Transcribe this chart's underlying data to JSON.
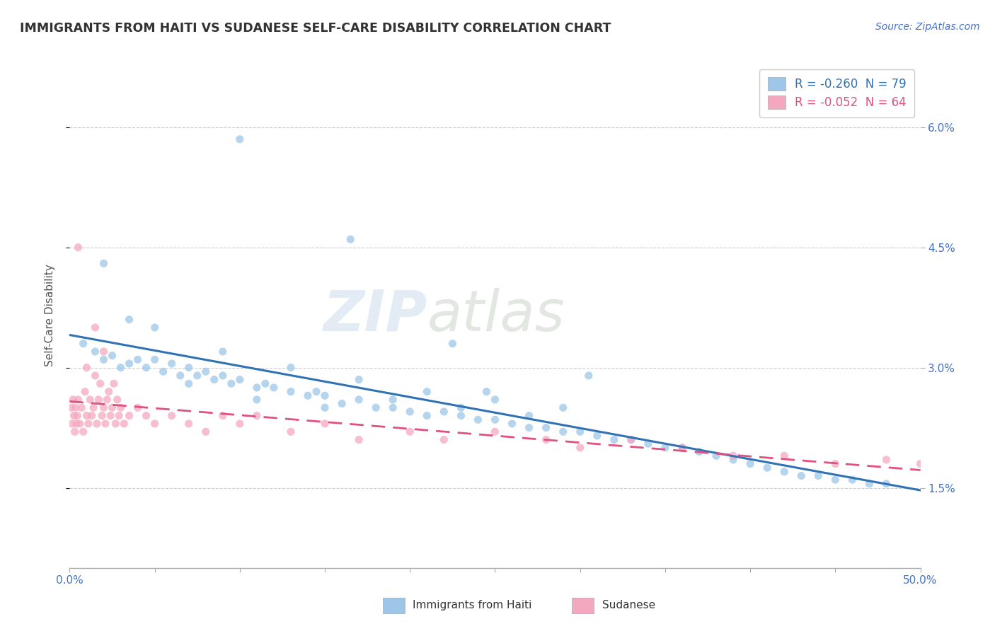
{
  "title": "IMMIGRANTS FROM HAITI VS SUDANESE SELF-CARE DISABILITY CORRELATION CHART",
  "source": "Source: ZipAtlas.com",
  "ylabel": "Self-Care Disability",
  "xlim": [
    0.0,
    50.0
  ],
  "ylim_bottom": 0.5,
  "ylim_top": 6.8,
  "ytick_positions": [
    1.5,
    3.0,
    4.5,
    6.0
  ],
  "ytick_labels": [
    "1.5%",
    "3.0%",
    "4.5%",
    "6.0%"
  ],
  "legend_line1": "R = -0.260  N = 79",
  "legend_line2": "R = -0.052  N = 64",
  "blue_color": "#9dc6e8",
  "pink_color": "#f4a8c0",
  "blue_line_color": "#3072b3",
  "pink_line_color": "#e05080",
  "watermark": "ZIPatlas",
  "blue_scatter_x": [
    10.0,
    0.8,
    1.5,
    2.0,
    2.5,
    3.0,
    3.5,
    4.0,
    4.5,
    5.0,
    5.5,
    6.0,
    6.5,
    7.0,
    7.5,
    8.0,
    8.5,
    9.0,
    9.5,
    10.0,
    11.0,
    11.5,
    12.0,
    13.0,
    14.0,
    14.5,
    15.0,
    16.0,
    17.0,
    18.0,
    19.0,
    20.0,
    21.0,
    22.0,
    23.0,
    24.0,
    25.0,
    26.0,
    27.0,
    28.0,
    29.0,
    30.0,
    31.0,
    32.0,
    33.0,
    34.0,
    35.0,
    36.0,
    37.0,
    38.0,
    39.0,
    40.0,
    41.0,
    42.0,
    43.0,
    44.0,
    45.0,
    46.0,
    47.0,
    48.0,
    2.0,
    3.5,
    5.0,
    7.0,
    9.0,
    11.0,
    13.0,
    15.0,
    17.0,
    19.0,
    21.0,
    23.0,
    25.0,
    27.0,
    29.0,
    30.5,
    22.5,
    24.5,
    16.5
  ],
  "blue_scatter_y": [
    5.85,
    3.3,
    3.2,
    3.1,
    3.15,
    3.0,
    3.05,
    3.1,
    3.0,
    3.1,
    2.95,
    3.05,
    2.9,
    3.0,
    2.9,
    2.95,
    2.85,
    2.9,
    2.8,
    2.85,
    2.75,
    2.8,
    2.75,
    2.7,
    2.65,
    2.7,
    2.65,
    2.55,
    2.6,
    2.5,
    2.5,
    2.45,
    2.4,
    2.45,
    2.4,
    2.35,
    2.35,
    2.3,
    2.25,
    2.25,
    2.2,
    2.2,
    2.15,
    2.1,
    2.1,
    2.05,
    2.0,
    2.0,
    1.95,
    1.9,
    1.85,
    1.8,
    1.75,
    1.7,
    1.65,
    1.65,
    1.6,
    1.6,
    1.55,
    1.55,
    4.3,
    3.6,
    3.5,
    2.8,
    3.2,
    2.6,
    3.0,
    2.5,
    2.85,
    2.6,
    2.7,
    2.5,
    2.6,
    2.4,
    2.5,
    2.9,
    3.3,
    2.7,
    4.6
  ],
  "pink_scatter_x": [
    0.1,
    0.15,
    0.2,
    0.25,
    0.3,
    0.35,
    0.4,
    0.45,
    0.5,
    0.6,
    0.7,
    0.8,
    0.9,
    1.0,
    1.1,
    1.2,
    1.3,
    1.4,
    1.5,
    1.6,
    1.7,
    1.8,
    1.9,
    2.0,
    2.1,
    2.2,
    2.3,
    2.4,
    2.5,
    2.6,
    2.7,
    2.8,
    2.9,
    3.0,
    3.2,
    3.5,
    4.0,
    4.5,
    5.0,
    6.0,
    7.0,
    8.0,
    9.0,
    10.0,
    11.0,
    13.0,
    15.0,
    17.0,
    20.0,
    22.0,
    25.0,
    28.0,
    30.0,
    33.0,
    36.0,
    39.0,
    42.0,
    45.0,
    48.0,
    50.0,
    0.5,
    1.0,
    1.5,
    2.0
  ],
  "pink_scatter_y": [
    2.5,
    2.3,
    2.6,
    2.4,
    2.2,
    2.5,
    2.3,
    2.4,
    2.6,
    2.3,
    2.5,
    2.2,
    2.7,
    2.4,
    2.3,
    2.6,
    2.4,
    2.5,
    3.5,
    2.3,
    2.6,
    2.8,
    2.4,
    2.5,
    2.3,
    2.6,
    2.7,
    2.4,
    2.5,
    2.8,
    2.3,
    2.6,
    2.4,
    2.5,
    2.3,
    2.4,
    2.5,
    2.4,
    2.3,
    2.4,
    2.3,
    2.2,
    2.4,
    2.3,
    2.4,
    2.2,
    2.3,
    2.1,
    2.2,
    2.1,
    2.2,
    2.1,
    2.0,
    2.1,
    2.0,
    1.9,
    1.9,
    1.8,
    1.85,
    1.8,
    4.5,
    3.0,
    2.9,
    3.2
  ]
}
